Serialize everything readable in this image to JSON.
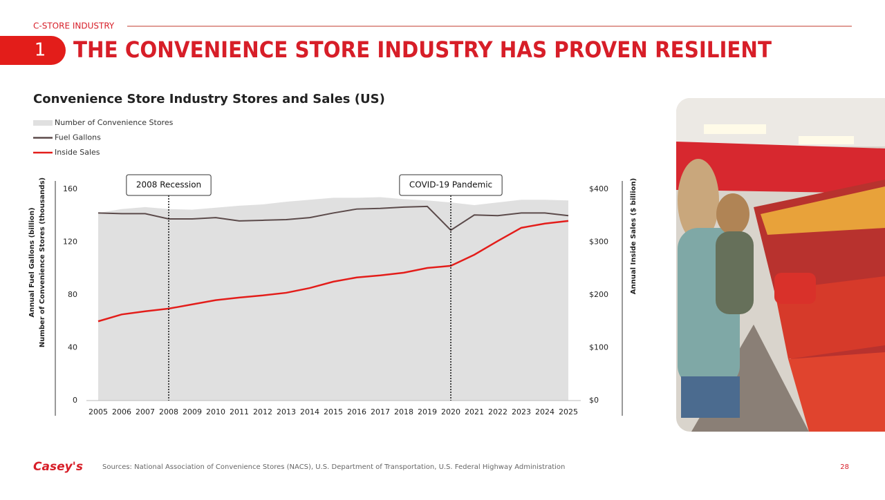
{
  "header": {
    "section": "C-STORE INDUSTRY",
    "number": "1",
    "title": "THE CONVENIENCE STORE INDUSTRY HAS PROVEN RESILIENT"
  },
  "chart_data": {
    "type": "line",
    "title": "Convenience Store Industry Stores and Sales (US)",
    "categories": [
      "2005",
      "2006",
      "2007",
      "2008",
      "2009",
      "2010",
      "2011",
      "2012",
      "2013",
      "2014",
      "2015",
      "2016",
      "2017",
      "2018",
      "2019",
      "2020",
      "2021",
      "2022",
      "2023",
      "2024",
      "2025"
    ],
    "y_label": [
      "Annual Fuel Gallons (billion)",
      "Number of Convenience Stores (thousands)"
    ],
    "y2_label": "Annual Inside Sales ($ billion)",
    "ylim": [
      0,
      160
    ],
    "yticks": [
      0,
      40,
      80,
      120,
      160
    ],
    "y2lim": [
      0,
      400
    ],
    "y2ticks": [
      {
        "value": 0,
        "label": "$0"
      },
      {
        "value": 100,
        "label": "$100"
      },
      {
        "value": 200,
        "label": "$200"
      },
      {
        "value": 300,
        "label": "$300"
      },
      {
        "value": 400,
        "label": "$400"
      }
    ],
    "series": [
      {
        "name": "Number of Convenience Stores",
        "type": "area",
        "color": "#e0e0e0",
        "values": [
          142,
          145,
          146.5,
          145,
          144.5,
          146,
          147.5,
          148.5,
          150.5,
          152,
          153.5,
          153.5,
          154,
          152.5,
          151.5,
          150,
          148,
          150,
          152,
          152,
          151.5
        ]
      },
      {
        "name": "Fuel Gallons",
        "type": "line",
        "color": "#5b4a4a",
        "values": [
          142,
          141.5,
          141.5,
          137.5,
          137.5,
          138.5,
          136,
          136.5,
          137,
          138.5,
          142,
          145,
          145.5,
          146.5,
          147,
          129,
          140.5,
          140,
          142,
          142,
          140
        ]
      },
      {
        "name": "Inside Sales",
        "type": "line",
        "color": "#e31d1a",
        "axis": "y2",
        "values": [
          150,
          163,
          169,
          174,
          182,
          190,
          195,
          199,
          204,
          213,
          225,
          233,
          237,
          242,
          251,
          255,
          276,
          302,
          327,
          335,
          340
        ]
      }
    ],
    "annotations": [
      {
        "text": "2008 Recession",
        "x": "2008"
      },
      {
        "text": "COVID-19 Pandemic",
        "x": "2020"
      }
    ]
  },
  "footer": {
    "logo": "Casey's",
    "sources": "Sources: National Association of Convenience Stores (NACS), U.S. Department of Transportation, U.S. Federal Highway Administration",
    "page": "28"
  }
}
